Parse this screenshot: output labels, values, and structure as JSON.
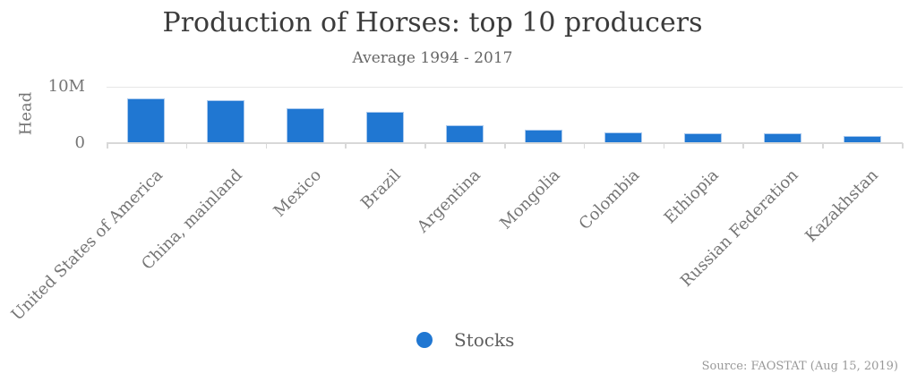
{
  "colors": {
    "background": "#ffffff",
    "bar": "#2077d2",
    "bar_border": "#a9c9ee",
    "grid_line": "#e7e7e7",
    "axis_line": "#d8d8d8",
    "title_text": "#3c3c3c",
    "subtitle_text": "#666666",
    "axis_text": "#757575",
    "legend_text": "#5f5f5f",
    "source_text": "#999999"
  },
  "chart_data": {
    "type": "bar",
    "title": "Production of Horses: top 10 producers",
    "subtitle": "Average 1994 - 2017",
    "ylabel": "Head",
    "xlabel": "",
    "yticks": [
      "10M",
      "0"
    ],
    "ylim_millions": [
      0,
      10
    ],
    "grid": "single horizontal gridline at 10M; short x-axis ticks at category boundaries",
    "x_label_rotation_deg": -45,
    "legend": {
      "label": "Stocks",
      "position": "bottom-center"
    },
    "categories": [
      "United States of America",
      "China, mainland",
      "Mexico",
      "Brazil",
      "Argentina",
      "Mongolia",
      "Colombia",
      "Ethiopia",
      "Russian Federation",
      "Kazakhstan"
    ],
    "series": [
      {
        "name": "Stocks",
        "unit": "head, millions (est. from axis)",
        "values_millions": [
          7.9,
          7.55,
          6.2,
          5.5,
          3.05,
          2.25,
          1.75,
          1.6,
          1.55,
          1.2
        ]
      }
    ]
  },
  "footer": {
    "source": "Source: FAOSTAT (Aug 15, 2019)"
  }
}
